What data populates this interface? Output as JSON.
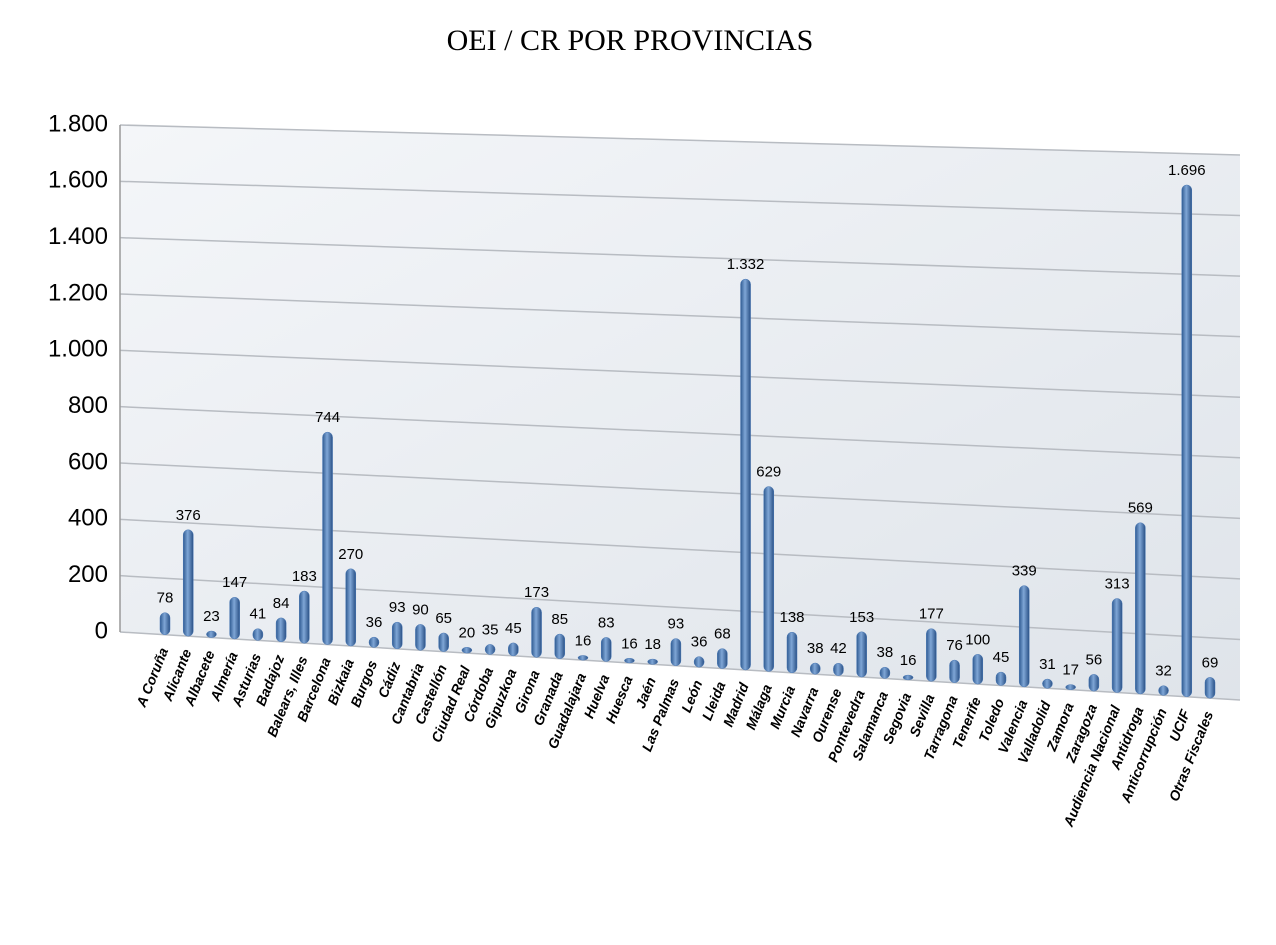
{
  "chart_data": {
    "type": "bar",
    "title": "OEI / CR POR PROVINCIAS",
    "categories": [
      "A Coruña",
      "Alicante",
      "Albacete",
      "Almería",
      "Asturias",
      "Badajoz",
      "Balears, Illes",
      "Barcelona",
      "Bizkaia",
      "Burgos",
      "Cádiz",
      "Cantabria",
      "Castellón",
      "Ciudad Real",
      "Córdoba",
      "Gipuzkoa",
      "Girona",
      "Granada",
      "Guadalajara",
      "Huelva",
      "Huesca",
      "Jaén",
      "Las Palmas",
      "León",
      "Lleida",
      "Madrid",
      "Málaga",
      "Murcia",
      "Navarra",
      "Ourense",
      "Pontevedra",
      "Salamanca",
      "Segovia",
      "Sevilla",
      "Tarragona",
      "Tenerife",
      "Toledo",
      "Valencia",
      "Valladolid",
      "Zamora",
      "Zaragoza",
      "Audiencia Nacional",
      "Antidroga",
      "Anticorrupción",
      "UCIF",
      "Otras Fiscales"
    ],
    "values": [
      78,
      376,
      23,
      147,
      41,
      84,
      183,
      744,
      270,
      36,
      93,
      90,
      65,
      20,
      35,
      45,
      173,
      85,
      16,
      83,
      16,
      18,
      93,
      36,
      68,
      1332,
      629,
      138,
      38,
      42,
      153,
      38,
      16,
      177,
      76,
      100,
      45,
      339,
      31,
      17,
      56,
      313,
      569,
      32,
      1696,
      69
    ],
    "value_labels": [
      "78",
      "376",
      "23",
      "147",
      "41",
      "84",
      "183",
      "744",
      "270",
      "36",
      "93",
      "90",
      "65",
      "20",
      "35",
      "45",
      "173",
      "85",
      "16",
      "83",
      "16",
      "18",
      "93",
      "36",
      "68",
      "1.332",
      "629",
      "138",
      "38",
      "42",
      "153",
      "38",
      "16",
      "177",
      "76",
      "100",
      "45",
      "339",
      "31",
      "17",
      "56",
      "313",
      "569",
      "32",
      "1.696",
      "69"
    ],
    "color": "#4a78b4",
    "ylim": [
      0,
      1800
    ],
    "yticks": [
      0,
      200,
      400,
      600,
      800,
      {
        "value": 1000,
        "label": "1.000"
      },
      {
        "value": 1200,
        "label": "1.200"
      },
      {
        "value": 1400,
        "label": "1.400"
      },
      {
        "value": 1600,
        "label": "1.600"
      },
      {
        "value": 1800,
        "label": "1.800"
      }
    ],
    "grid": true
  }
}
